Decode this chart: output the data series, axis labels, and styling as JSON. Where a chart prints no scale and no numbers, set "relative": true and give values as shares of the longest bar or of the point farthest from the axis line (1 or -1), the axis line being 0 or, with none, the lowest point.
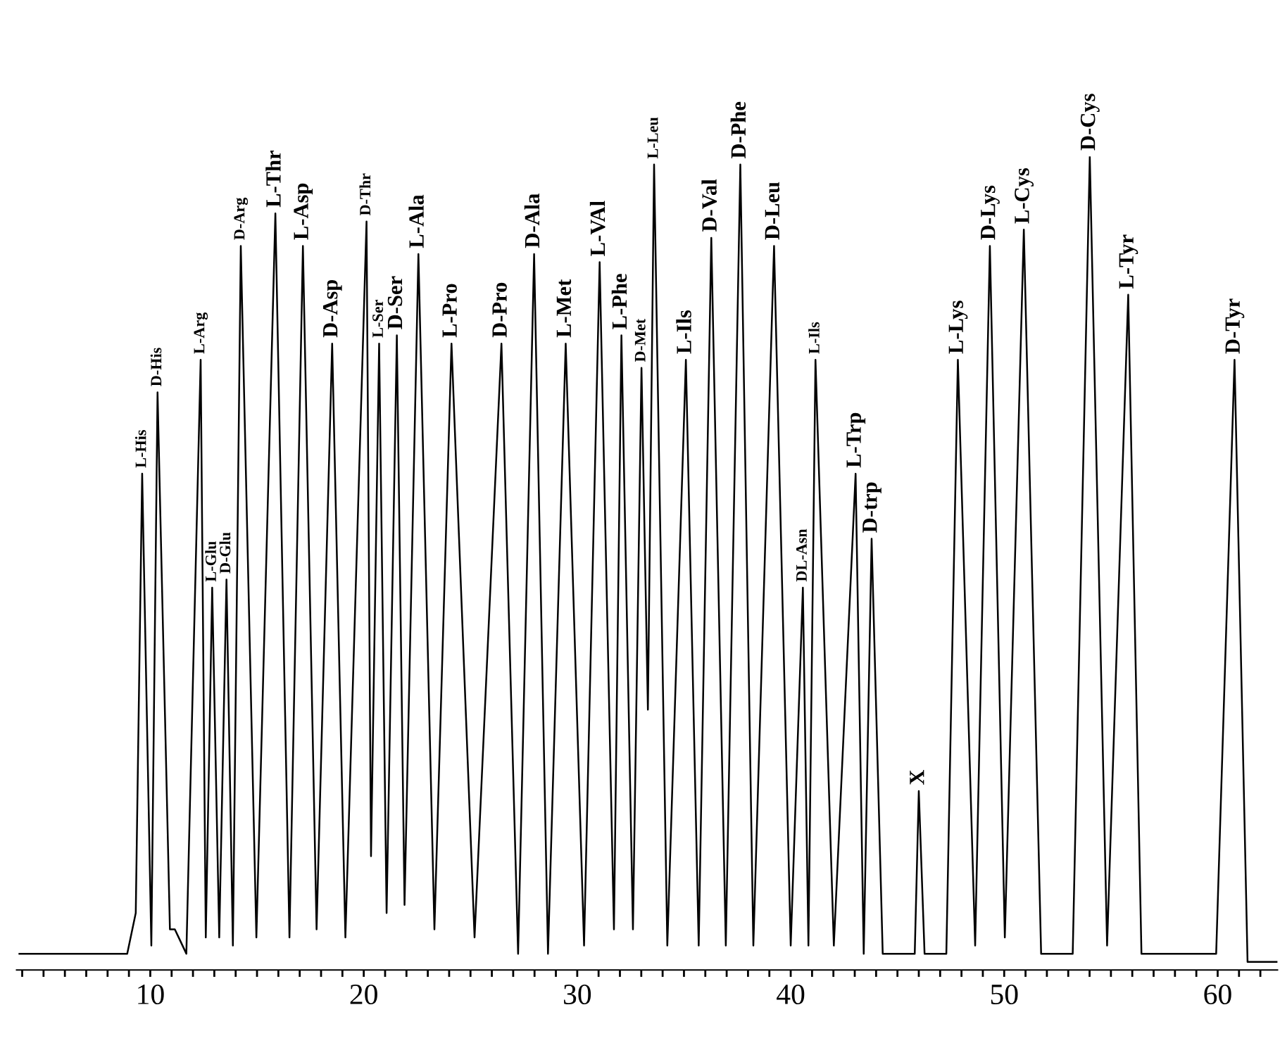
{
  "chart_data": {
    "type": "line",
    "relative": true,
    "xlim": [
      3.74,
      62.8
    ],
    "xticks": [
      {
        "value": 4,
        "label": null
      },
      {
        "value": 5,
        "label": null
      },
      {
        "value": 6,
        "label": null
      },
      {
        "value": 7,
        "label": null
      },
      {
        "value": 8,
        "label": null
      },
      {
        "value": 9,
        "label": null
      },
      10,
      {
        "value": 11,
        "label": null
      },
      {
        "value": 12,
        "label": null
      },
      {
        "value": 13,
        "label": null
      },
      {
        "value": 14,
        "label": null
      },
      {
        "value": 15,
        "label": null
      },
      {
        "value": 16,
        "label": null
      },
      {
        "value": 17,
        "label": null
      },
      {
        "value": 18,
        "label": null
      },
      {
        "value": 19,
        "label": null
      },
      20,
      {
        "value": 21,
        "label": null
      },
      {
        "value": 22,
        "label": null
      },
      {
        "value": 23,
        "label": null
      },
      {
        "value": 24,
        "label": null
      },
      {
        "value": 25,
        "label": null
      },
      {
        "value": 26,
        "label": null
      },
      {
        "value": 27,
        "label": null
      },
      {
        "value": 28,
        "label": null
      },
      {
        "value": 29,
        "label": null
      },
      30,
      {
        "value": 31,
        "label": null
      },
      {
        "value": 32,
        "label": null
      },
      {
        "value": 33,
        "label": null
      },
      {
        "value": 34,
        "label": null
      },
      {
        "value": 35,
        "label": null
      },
      {
        "value": 36,
        "label": null
      },
      {
        "value": 37,
        "label": null
      },
      {
        "value": 38,
        "label": null
      },
      {
        "value": 39,
        "label": null
      },
      40,
      {
        "value": 41,
        "label": null
      },
      {
        "value": 42,
        "label": null
      },
      {
        "value": 43,
        "label": null
      },
      {
        "value": 44,
        "label": null
      },
      {
        "value": 45,
        "label": null
      },
      {
        "value": 46,
        "label": null
      },
      {
        "value": 47,
        "label": null
      },
      {
        "value": 48,
        "label": null
      },
      {
        "value": 49,
        "label": null
      },
      50,
      {
        "value": 51,
        "label": null
      },
      {
        "value": 52,
        "label": null
      },
      {
        "value": 53,
        "label": null
      },
      {
        "value": 54,
        "label": null
      },
      {
        "value": 55,
        "label": null
      },
      {
        "value": 56,
        "label": null
      },
      {
        "value": 57,
        "label": null
      },
      {
        "value": 58,
        "label": null
      },
      {
        "value": 59,
        "label": null
      },
      60,
      {
        "value": 61,
        "label": null
      },
      {
        "value": 62,
        "label": null
      }
    ],
    "grid": false,
    "legend": false,
    "marker": "none",
    "line_style": "solid",
    "series": [
      {
        "color": "#000000",
        "x": [
          3.87,
          8.92,
          9.32,
          9.62,
          10.05,
          10.34,
          10.92,
          11.15,
          11.69,
          12.36,
          12.6,
          12.9,
          13.23,
          13.57,
          13.87,
          14.24,
          14.97,
          15.86,
          16.52,
          17.15,
          17.79,
          18.52,
          19.14,
          20.13,
          20.34,
          20.72,
          21.07,
          21.55,
          21.91,
          22.56,
          23.31,
          24.11,
          25.19,
          26.45,
          27.23,
          27.98,
          28.63,
          29.46,
          30.32,
          31.05,
          31.72,
          32.07,
          32.61,
          33.01,
          33.31,
          33.6,
          34.22,
          35.09,
          35.69,
          36.28,
          36.96,
          37.64,
          38.25,
          39.22,
          40.0,
          40.57,
          40.83,
          41.16,
          42.02,
          43.04,
          43.42,
          43.79,
          44.31,
          45.81,
          46.0,
          46.27,
          47.29,
          47.83,
          48.64,
          49.33,
          50.03,
          50.92,
          51.73,
          53.21,
          54.01,
          54.82,
          55.81,
          56.43,
          59.93,
          60.79,
          61.4,
          62.8
        ],
        "values": [
          0.02,
          0.02,
          0.07,
          0.61,
          0.03,
          0.71,
          0.05,
          0.05,
          0.02,
          0.75,
          0.04,
          0.47,
          0.04,
          0.48,
          0.03,
          0.89,
          0.04,
          0.93,
          0.04,
          0.89,
          0.05,
          0.77,
          0.04,
          0.92,
          0.14,
          0.77,
          0.07,
          0.78,
          0.08,
          0.88,
          0.05,
          0.77,
          0.04,
          0.77,
          0.02,
          0.88,
          0.02,
          0.77,
          0.03,
          0.87,
          0.05,
          0.78,
          0.05,
          0.74,
          0.32,
          0.99,
          0.03,
          0.75,
          0.03,
          0.9,
          0.03,
          0.99,
          0.03,
          0.89,
          0.03,
          0.47,
          0.03,
          0.75,
          0.03,
          0.61,
          0.02,
          0.53,
          0.02,
          0.02,
          0.22,
          0.02,
          0.02,
          0.75,
          0.03,
          0.89,
          0.04,
          0.91,
          0.02,
          0.02,
          1.0,
          0.03,
          0.83,
          0.02,
          0.02,
          0.75,
          0.01,
          0.01
        ]
      }
    ],
    "annotations": [
      {
        "text": "L-His",
        "x": 9.62,
        "y": 0.61
      },
      {
        "text": "D-His",
        "x": 10.34,
        "y": 0.71
      },
      {
        "text": "L-Arg",
        "x": 12.36,
        "y": 0.75
      },
      {
        "text": "L-Glu",
        "x": 12.9,
        "y": 0.47
      },
      {
        "text": "D-Glu",
        "x": 13.57,
        "y": 0.48
      },
      {
        "text": "D-Arg",
        "x": 14.24,
        "y": 0.89
      },
      {
        "text": "L-Thr",
        "x": 15.86,
        "y": 0.93
      },
      {
        "text": "L-Asp",
        "x": 17.15,
        "y": 0.89
      },
      {
        "text": "D-Asp",
        "x": 18.52,
        "y": 0.77
      },
      {
        "text": "D-Thr",
        "x": 20.13,
        "y": 0.92
      },
      {
        "text": "L-Ser",
        "x": 20.72,
        "y": 0.77
      },
      {
        "text": "D-Ser",
        "x": 21.55,
        "y": 0.78
      },
      {
        "text": "L-Ala",
        "x": 22.56,
        "y": 0.88
      },
      {
        "text": "L-Pro",
        "x": 24.11,
        "y": 0.77
      },
      {
        "text": "D-Pro",
        "x": 26.45,
        "y": 0.77
      },
      {
        "text": "D-Ala",
        "x": 27.98,
        "y": 0.88
      },
      {
        "text": "L-Met",
        "x": 29.46,
        "y": 0.77
      },
      {
        "text": "L-VAl",
        "x": 31.05,
        "y": 0.87
      },
      {
        "text": "L-Phe",
        "x": 32.07,
        "y": 0.78
      },
      {
        "text": "D-Met",
        "x": 33.01,
        "y": 0.74
      },
      {
        "text": "L-Leu",
        "x": 33.6,
        "y": 0.99
      },
      {
        "text": "L-Ils",
        "x": 35.09,
        "y": 0.75
      },
      {
        "text": "D-Val",
        "x": 36.28,
        "y": 0.9
      },
      {
        "text": "D-Phe",
        "x": 37.64,
        "y": 0.99
      },
      {
        "text": "D-Leu",
        "x": 39.22,
        "y": 0.89
      },
      {
        "text": "DL-Asn",
        "x": 40.57,
        "y": 0.47
      },
      {
        "text": "L-Ils",
        "x": 41.16,
        "y": 0.75
      },
      {
        "text": "L-Trp",
        "x": 43.04,
        "y": 0.61
      },
      {
        "text": "D-trp",
        "x": 43.79,
        "y": 0.53
      },
      {
        "text": "X",
        "x": 46.0,
        "y": 0.22
      },
      {
        "text": "L-Lys",
        "x": 47.83,
        "y": 0.75
      },
      {
        "text": "D-Lys",
        "x": 49.33,
        "y": 0.89
      },
      {
        "text": "L-Cys",
        "x": 50.92,
        "y": 0.91
      },
      {
        "text": "D-Cys",
        "x": 54.01,
        "y": 1.0
      },
      {
        "text": "L-Tyr",
        "x": 55.81,
        "y": 0.83
      },
      {
        "text": "D-Tyr",
        "x": 60.79,
        "y": 0.75
      }
    ]
  }
}
